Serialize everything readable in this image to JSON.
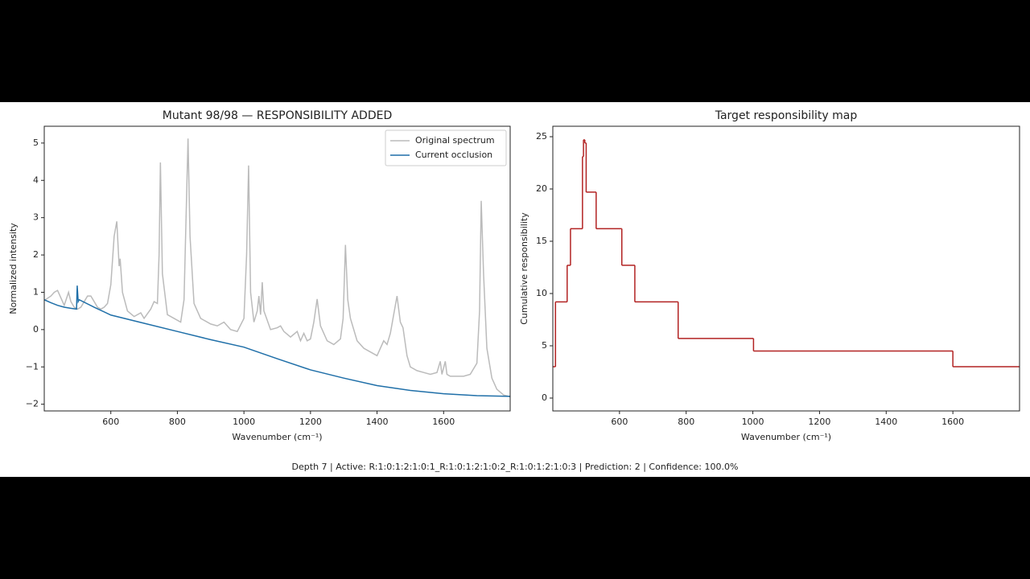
{
  "chart_data": [
    {
      "type": "line",
      "title": "Mutant 98/98 — RESPONSIBILITY ADDED",
      "title_color": "#3a8a3a",
      "x_label": "Wavenumber (cm⁻¹)",
      "y_label": "Normalized intensity",
      "xlim": [
        400,
        1800
      ],
      "ylim": [
        -2.18,
        5.45
      ],
      "xticks": [
        600,
        800,
        1000,
        1200,
        1400,
        1600
      ],
      "yticks": [
        {
          "value": -2,
          "label": "−2"
        },
        {
          "value": -1,
          "label": "−1"
        },
        0,
        1,
        2,
        3,
        4,
        5
      ],
      "legend": "upper right",
      "series": [
        {
          "name": "Original spectrum",
          "color": "#bbbbbb",
          "x": [
            400,
            420,
            430,
            440,
            450,
            460,
            473,
            480,
            490,
            500,
            510,
            520,
            530,
            540,
            550,
            560,
            570,
            580,
            590,
            600,
            610,
            618,
            625,
            628,
            635,
            650,
            670,
            690,
            700,
            720,
            730,
            740,
            745,
            749,
            755,
            770,
            790,
            810,
            820,
            832,
            838,
            850,
            870,
            880,
            900,
            920,
            940,
            960,
            980,
            1000,
            1008,
            1014,
            1020,
            1030,
            1040,
            1045,
            1050,
            1055,
            1060,
            1080,
            1100,
            1110,
            1120,
            1140,
            1160,
            1170,
            1180,
            1190,
            1200,
            1210,
            1220,
            1230,
            1250,
            1270,
            1290,
            1298,
            1305,
            1312,
            1320,
            1340,
            1360,
            1380,
            1400,
            1420,
            1430,
            1440,
            1450,
            1460,
            1470,
            1478,
            1490,
            1500,
            1520,
            1540,
            1560,
            1580,
            1590,
            1595,
            1605,
            1610,
            1620,
            1640,
            1660,
            1680,
            1700,
            1708,
            1713,
            1720,
            1730,
            1745,
            1760,
            1780,
            1800
          ],
          "values": [
            0.78,
            0.9,
            1.0,
            1.05,
            0.85,
            0.65,
            1.0,
            0.75,
            0.6,
            0.55,
            0.6,
            0.75,
            0.9,
            0.9,
            0.75,
            0.6,
            0.55,
            0.6,
            0.7,
            1.2,
            2.5,
            2.9,
            1.7,
            1.9,
            1.0,
            0.5,
            0.35,
            0.45,
            0.3,
            0.55,
            0.75,
            0.7,
            2.0,
            4.48,
            1.5,
            0.4,
            0.3,
            0.2,
            0.8,
            5.12,
            2.5,
            0.7,
            0.3,
            0.25,
            0.15,
            0.1,
            0.2,
            0.0,
            -0.05,
            0.3,
            2.0,
            4.4,
            1.0,
            0.2,
            0.5,
            0.9,
            0.4,
            1.27,
            0.5,
            0.0,
            0.05,
            0.1,
            -0.05,
            -0.2,
            -0.05,
            -0.3,
            -0.1,
            -0.3,
            -0.25,
            0.2,
            0.82,
            0.1,
            -0.3,
            -0.4,
            -0.25,
            0.3,
            2.27,
            0.8,
            0.3,
            -0.3,
            -0.5,
            -0.6,
            -0.7,
            -0.3,
            -0.4,
            -0.1,
            0.4,
            0.9,
            0.2,
            0.05,
            -0.7,
            -1.0,
            -1.1,
            -1.15,
            -1.2,
            -1.15,
            -0.85,
            -1.2,
            -0.85,
            -1.2,
            -1.25,
            -1.25,
            -1.25,
            -1.2,
            -0.9,
            0.5,
            3.45,
            1.5,
            -0.5,
            -1.3,
            -1.6,
            -1.75,
            -1.8
          ]
        },
        {
          "name": "Current occlusion",
          "color": "#1f6fa8",
          "x": [
            400,
            420,
            440,
            460,
            480,
            497,
            499,
            502,
            505,
            550,
            600,
            700,
            800,
            900,
            1000,
            1100,
            1200,
            1300,
            1400,
            1500,
            1600,
            1700,
            1800
          ],
          "values": [
            0.8,
            0.72,
            0.65,
            0.6,
            0.57,
            0.55,
            1.18,
            0.75,
            0.8,
            0.6,
            0.39,
            0.17,
            -0.05,
            -0.27,
            -0.47,
            -0.78,
            -1.08,
            -1.3,
            -1.5,
            -1.63,
            -1.72,
            -1.77,
            -1.79
          ]
        }
      ]
    },
    {
      "type": "step",
      "title": "Target responsibility map",
      "x_label": "Wavenumber (cm⁻¹)",
      "y_label": "Cumulative responsibility",
      "xlim": [
        400,
        1800
      ],
      "ylim": [
        -1.23,
        26
      ],
      "xticks": [
        600,
        800,
        1000,
        1200,
        1400,
        1600
      ],
      "yticks": [
        0,
        5,
        10,
        15,
        20,
        25
      ],
      "series": [
        {
          "color": "#b22222",
          "x": [
            400,
            408,
            443,
            453,
            489,
            492,
            496,
            500,
            530,
            607,
            646,
            776,
            1002,
            1600,
            1800
          ],
          "values": [
            3.0,
            9.2,
            12.7,
            16.2,
            23.1,
            24.7,
            24.4,
            19.7,
            16.2,
            12.7,
            9.2,
            5.7,
            4.5,
            3.0,
            3.0
          ]
        }
      ]
    }
  ],
  "footer": "Depth 7 | Active: R:1:0:1:2:1:0:1_R:1:0:1:2:1:0:2_R:1:0:1:2:1:0:3 | Prediction: 2 | Confidence: 100.0%"
}
